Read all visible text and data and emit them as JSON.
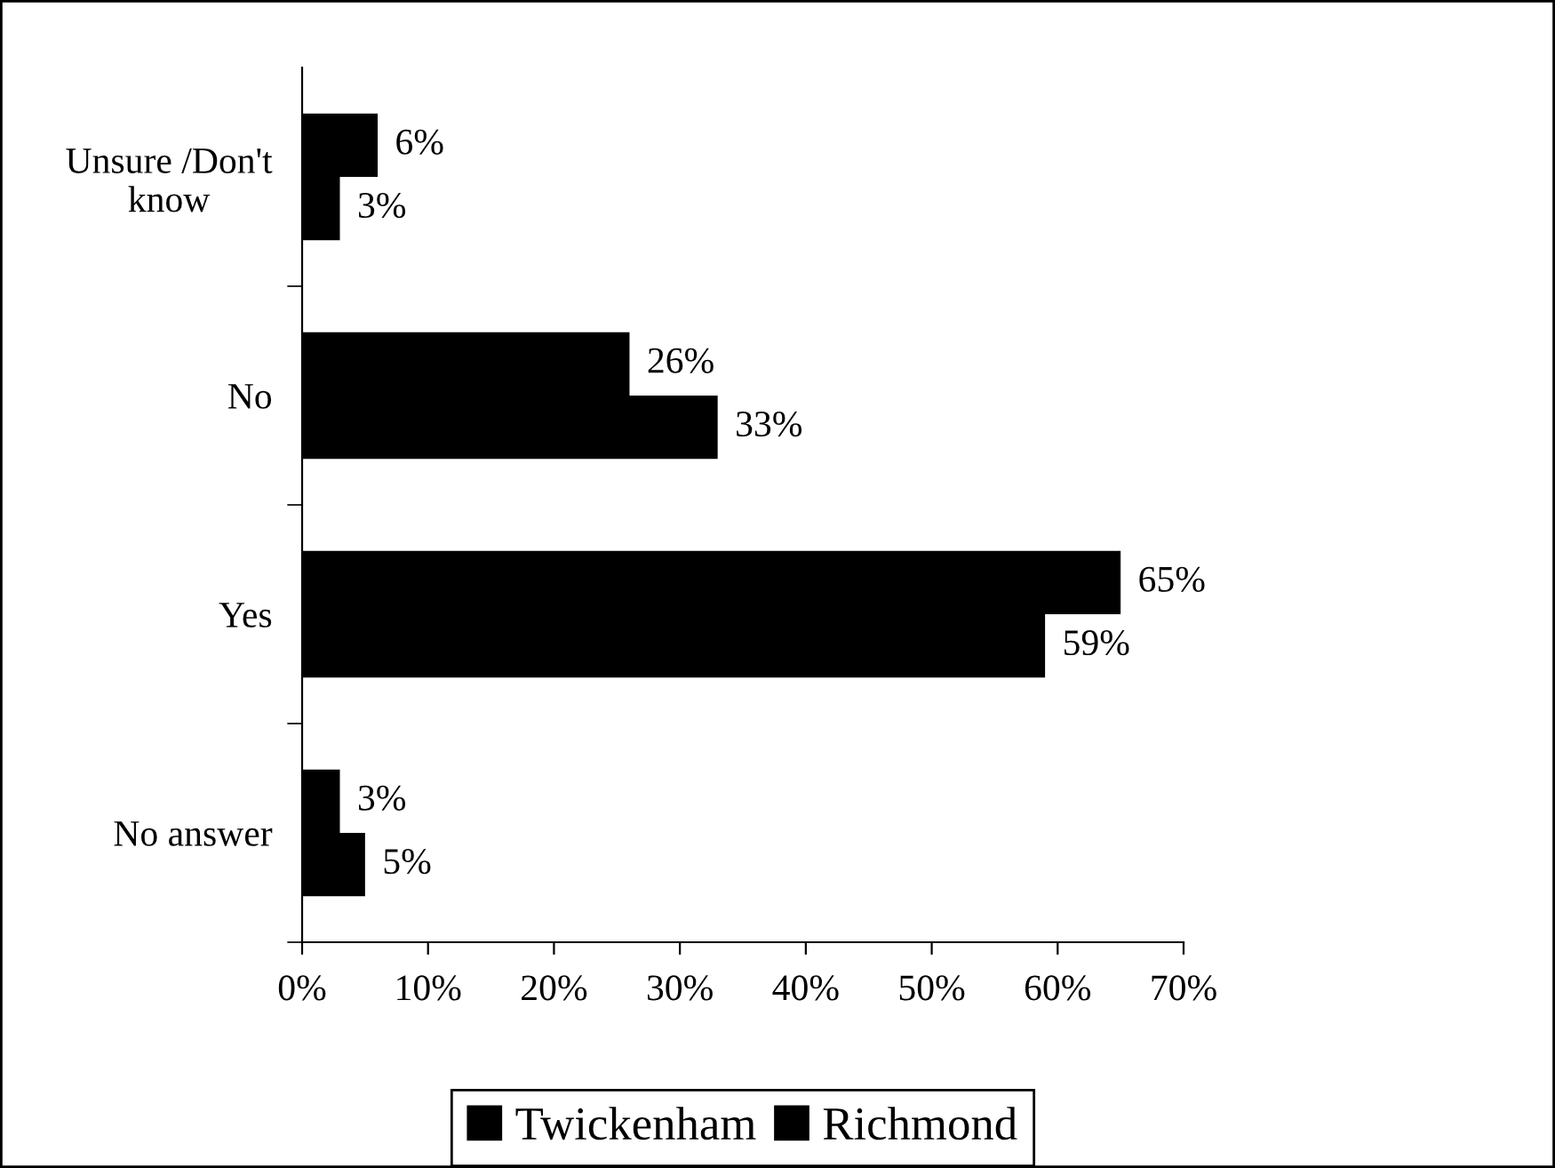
{
  "chart_data": {
    "type": "bar",
    "orientation": "horizontal",
    "categories": [
      "Unsure /Don't\nknow",
      "No",
      "Yes",
      "No answer"
    ],
    "series": [
      {
        "name": "Twickenham",
        "color": "#000000",
        "values": [
          6,
          26,
          65,
          3
        ],
        "value_labels": [
          "6%",
          "26%",
          "65%",
          "3%"
        ]
      },
      {
        "name": "Richmond",
        "color": "#000000",
        "values": [
          3,
          33,
          59,
          5
        ],
        "value_labels": [
          "3%",
          "33%",
          "59%",
          "5%"
        ]
      }
    ],
    "xlim": [
      0,
      70
    ],
    "xticks": [
      {
        "value": 0,
        "label": "0%"
      },
      {
        "value": 10,
        "label": "10%"
      },
      {
        "value": 20,
        "label": "20%"
      },
      {
        "value": 30,
        "label": "30%"
      },
      {
        "value": 40,
        "label": "40%"
      },
      {
        "value": 50,
        "label": "50%"
      },
      {
        "value": 60,
        "label": "60%"
      },
      {
        "value": 70,
        "label": "70%"
      }
    ],
    "grid": false,
    "legend": "bottom"
  }
}
